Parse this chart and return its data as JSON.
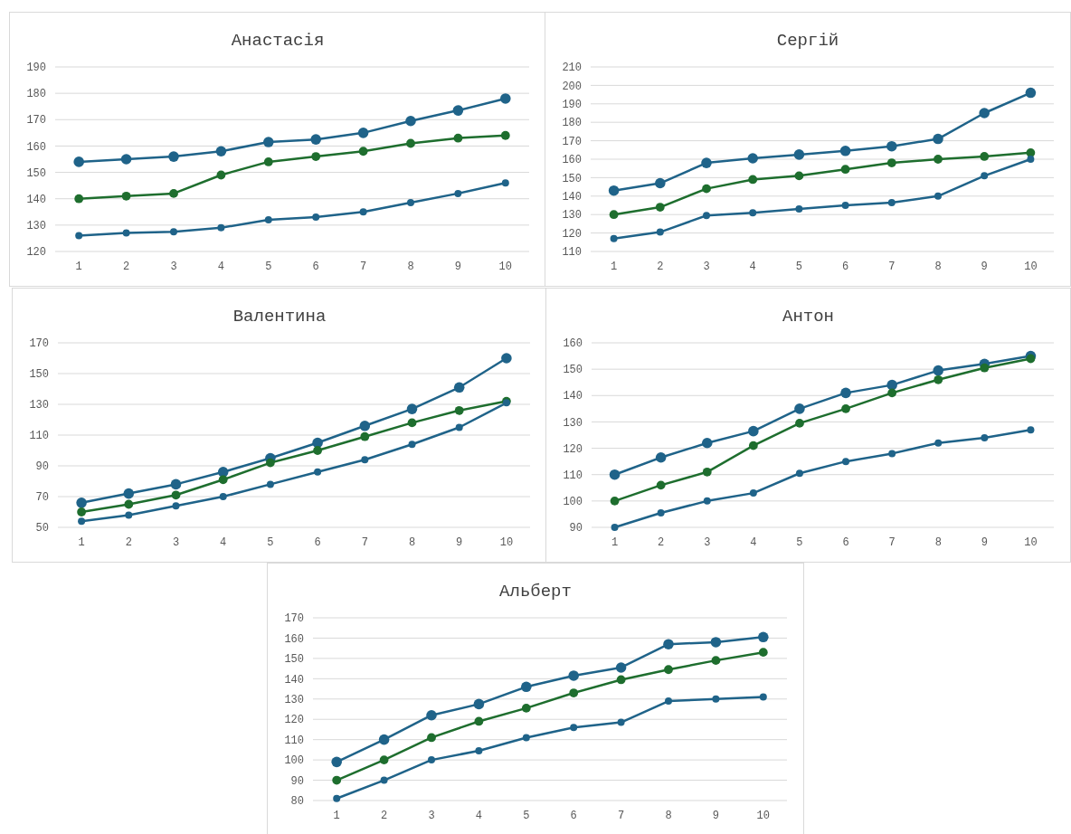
{
  "chart_data": [
    {
      "type": "line",
      "title": "Анастасія",
      "categories": [
        "1",
        "2",
        "3",
        "4",
        "5",
        "6",
        "7",
        "8",
        "9",
        "10"
      ],
      "ylim": [
        120,
        190
      ],
      "yticks": [
        120,
        130,
        140,
        150,
        160,
        170,
        180,
        190
      ],
      "grid": "y",
      "marker": "circle",
      "series": [
        {
          "color": "#1f6389",
          "values": [
            154,
            155,
            156,
            158,
            161.5,
            162.5,
            165,
            169.5,
            173.5,
            178
          ]
        },
        {
          "color": "#1e6e2e",
          "values": [
            140,
            141,
            142,
            149,
            154,
            156,
            158,
            161,
            163,
            164
          ]
        },
        {
          "color": "#1f6389",
          "values": [
            126,
            127,
            127.5,
            129,
            132,
            133,
            135,
            138.5,
            142,
            146
          ]
        }
      ]
    },
    {
      "type": "line",
      "title": "Сергій",
      "categories": [
        "1",
        "2",
        "3",
        "4",
        "5",
        "6",
        "7",
        "8",
        "9",
        "10"
      ],
      "ylim": [
        110,
        210
      ],
      "yticks": [
        110,
        120,
        130,
        140,
        150,
        160,
        170,
        180,
        190,
        200,
        210
      ],
      "grid": "y",
      "marker": "circle",
      "series": [
        {
          "color": "#1f6389",
          "values": [
            143,
            147,
            158,
            160.5,
            162.5,
            164.5,
            167,
            171,
            185,
            196
          ]
        },
        {
          "color": "#1e6e2e",
          "values": [
            130,
            134,
            144,
            149,
            151,
            154.5,
            158,
            160,
            161.5,
            163.5
          ]
        },
        {
          "color": "#1f6389",
          "values": [
            117,
            120.5,
            129.5,
            131,
            133,
            135,
            136.5,
            140,
            151,
            160
          ]
        }
      ]
    },
    {
      "type": "line",
      "title": "Валентина",
      "categories": [
        "1",
        "2",
        "3",
        "4",
        "5",
        "6",
        "7",
        "8",
        "9",
        "10"
      ],
      "ylim": [
        50,
        170
      ],
      "yticks": [
        50,
        70,
        90,
        110,
        130,
        150,
        170
      ],
      "grid": "y",
      "marker": "circle",
      "series": [
        {
          "color": "#1f6389",
          "values": [
            66,
            72,
            78,
            86,
            95,
            105,
            116,
            127,
            141,
            160
          ]
        },
        {
          "color": "#1e6e2e",
          "values": [
            60,
            65,
            71,
            81,
            92,
            100,
            109,
            118,
            126,
            132
          ]
        },
        {
          "color": "#1f6389",
          "values": [
            54,
            58,
            64,
            70,
            78,
            86,
            94,
            104,
            115,
            131
          ]
        }
      ]
    },
    {
      "type": "line",
      "title": "Антон",
      "categories": [
        "1",
        "2",
        "3",
        "4",
        "5",
        "6",
        "7",
        "8",
        "9",
        "10"
      ],
      "ylim": [
        90,
        160
      ],
      "yticks": [
        90,
        100,
        110,
        120,
        130,
        140,
        150,
        160
      ],
      "grid": "y",
      "marker": "circle",
      "series": [
        {
          "color": "#1f6389",
          "values": [
            110,
            116.5,
            122,
            126.5,
            135,
            141,
            144,
            149.5,
            152,
            155
          ]
        },
        {
          "color": "#1e6e2e",
          "values": [
            100,
            106,
            111,
            121,
            129.5,
            135,
            141,
            146,
            150.5,
            154
          ]
        },
        {
          "color": "#1f6389",
          "values": [
            90,
            95.5,
            100,
            103,
            110.5,
            115,
            118,
            122,
            124,
            127
          ]
        }
      ]
    },
    {
      "type": "line",
      "title": "Альберт",
      "categories": [
        "1",
        "2",
        "3",
        "4",
        "5",
        "6",
        "7",
        "8",
        "9",
        "10"
      ],
      "ylim": [
        80,
        170
      ],
      "yticks": [
        80,
        90,
        100,
        110,
        120,
        130,
        140,
        150,
        160,
        170
      ],
      "grid": "y",
      "marker": "circle",
      "series": [
        {
          "color": "#1f6389",
          "values": [
            99,
            110,
            122,
            127.5,
            136,
            141.5,
            145.5,
            157,
            158,
            160.5
          ]
        },
        {
          "color": "#1e6e2e",
          "values": [
            90,
            100,
            111,
            119,
            125.5,
            133,
            139.5,
            144.5,
            149,
            153
          ]
        },
        {
          "color": "#1f6389",
          "values": [
            81,
            90,
            100,
            104.5,
            111,
            116,
            118.5,
            129,
            130,
            131
          ]
        }
      ]
    }
  ]
}
